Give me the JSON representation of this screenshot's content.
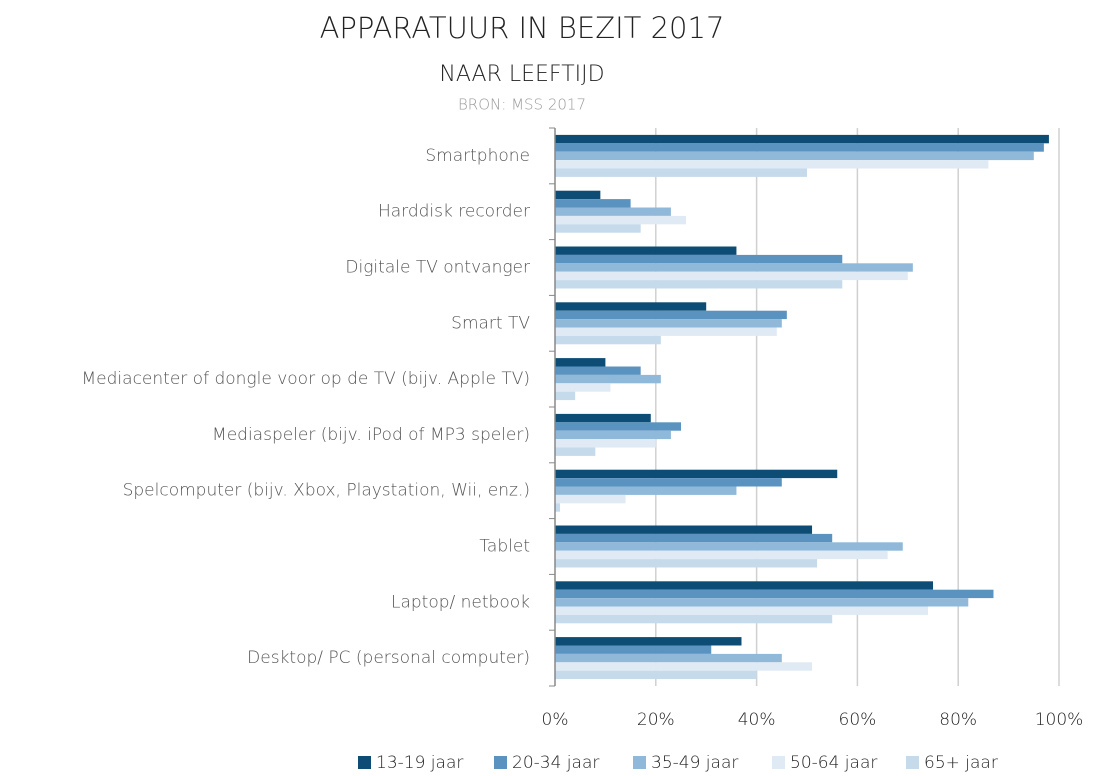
{
  "chart_data": {
    "type": "hbar",
    "title": "APPARATUUR IN BEZIT 2017",
    "subtitle": "NAAR LEEFTIJD",
    "source": "BRON: MSS 2017",
    "categories": [
      "Smartphone",
      "Harddisk recorder",
      "Digitale TV ontvanger",
      "Smart TV",
      "Mediacenter of dongle voor op de TV (bijv. Apple TV)",
      "Mediaspeler (bijv. iPod of MP3 speler)",
      "Spelcomputer (bijv. Xbox, Playstation, Wii, enz.)",
      "Tablet",
      "Laptop/ netbook",
      "Desktop/ PC (personal computer)"
    ],
    "series": [
      {
        "name": "13-19 jaar",
        "color": "#0d4c75",
        "values": [
          98,
          9,
          36,
          30,
          10,
          19,
          56,
          51,
          75,
          37
        ]
      },
      {
        "name": "20-34 jaar",
        "color": "#5b93c0",
        "values": [
          97,
          15,
          57,
          46,
          17,
          25,
          45,
          55,
          87,
          31
        ]
      },
      {
        "name": "35-49 jaar",
        "color": "#8fb8d9",
        "values": [
          95,
          23,
          71,
          45,
          21,
          23,
          36,
          69,
          82,
          45
        ]
      },
      {
        "name": "50-64 jaar",
        "color": "#dfeaf4",
        "values": [
          86,
          26,
          70,
          44,
          11,
          20,
          14,
          66,
          74,
          51
        ]
      },
      {
        "name": "65+ jaar",
        "color": "#c5dbeb",
        "values": [
          50,
          17,
          57,
          21,
          4,
          8,
          1,
          52,
          55,
          40
        ]
      }
    ],
    "xlim": [
      0,
      100
    ],
    "xticks": [
      {
        "value": 0,
        "label": "0%"
      },
      {
        "value": 20,
        "label": "20%"
      },
      {
        "value": 40,
        "label": "40%"
      },
      {
        "value": 60,
        "label": "60%"
      },
      {
        "value": 80,
        "label": "80%"
      },
      {
        "value": 100,
        "label": "100%"
      }
    ],
    "grid": true
  }
}
